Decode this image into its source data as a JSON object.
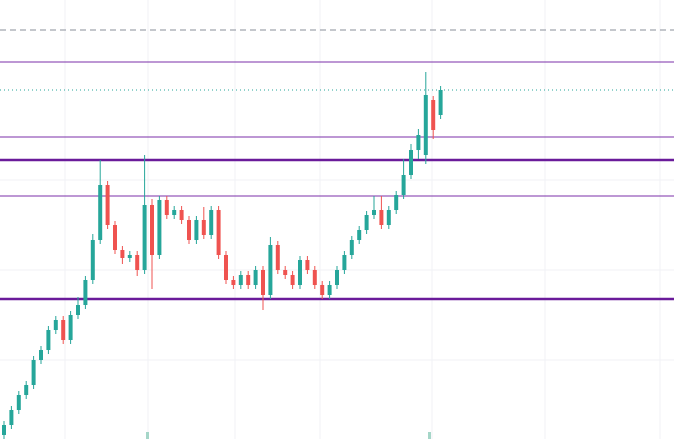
{
  "chart_data": {
    "type": "candlestick",
    "ylim": [
      0,
      439
    ],
    "up_color": "#26a69a",
    "down_color": "#ef5350",
    "open": [
      4,
      14,
      29,
      44,
      54,
      79,
      89,
      109,
      119,
      99,
      124,
      134,
      159,
      199,
      254,
      214,
      189,
      181,
      184,
      169,
      234,
      184,
      239,
      224,
      229,
      219,
      199,
      219,
      204,
      229,
      184,
      159,
      154,
      164,
      154,
      169,
      144,
      194,
      169,
      164,
      154,
      179,
      169,
      154,
      144,
      154,
      169,
      184,
      199,
      209,
      224,
      229,
      214,
      229,
      244,
      264,
      289,
      284,
      339,
      324
    ],
    "high": [
      18,
      33,
      48,
      58,
      83,
      93,
      113,
      123,
      123,
      128,
      142,
      163,
      205,
      279,
      258,
      218,
      193,
      188,
      188,
      284,
      240,
      243,
      243,
      233,
      233,
      223,
      223,
      232,
      233,
      233,
      188,
      163,
      168,
      168,
      173,
      173,
      202,
      198,
      173,
      168,
      183,
      183,
      173,
      158,
      158,
      173,
      188,
      203,
      213,
      228,
      243,
      243,
      233,
      248,
      280,
      295,
      310,
      367,
      343,
      353
    ],
    "low": [
      0,
      10,
      25,
      40,
      50,
      75,
      85,
      105,
      95,
      95,
      120,
      130,
      155,
      195,
      210,
      185,
      175,
      177,
      163,
      165,
      150,
      180,
      220,
      220,
      215,
      195,
      195,
      200,
      200,
      180,
      155,
      150,
      150,
      150,
      150,
      129,
      140,
      165,
      160,
      150,
      150,
      165,
      150,
      140,
      140,
      150,
      165,
      180,
      195,
      205,
      220,
      210,
      210,
      225,
      240,
      260,
      280,
      275,
      300,
      320
    ],
    "close": [
      14,
      29,
      44,
      54,
      79,
      89,
      109,
      119,
      99,
      124,
      134,
      159,
      199,
      254,
      214,
      189,
      181,
      184,
      169,
      234,
      184,
      239,
      224,
      229,
      219,
      199,
      219,
      204,
      229,
      184,
      159,
      154,
      164,
      154,
      169,
      144,
      194,
      169,
      164,
      154,
      179,
      169,
      154,
      144,
      154,
      169,
      184,
      199,
      209,
      224,
      229,
      214,
      229,
      244,
      264,
      289,
      304,
      344,
      309,
      349
    ],
    "levels": [
      {
        "value": 409,
        "color": "#8a8f99",
        "style": "dashed",
        "width": 1
      },
      {
        "value": 377,
        "color": "#7b2fa8",
        "style": "solid",
        "width": 1
      },
      {
        "value": 349,
        "color": "#26a69a",
        "style": "dotted",
        "width": 1
      },
      {
        "value": 302,
        "color": "#7b2fa8",
        "style": "solid",
        "width": 1
      },
      {
        "value": 279,
        "color": "#6a1b9a",
        "style": "solid",
        "width": 2.5
      },
      {
        "value": 243,
        "color": "#7b2fa8",
        "style": "solid",
        "width": 1
      },
      {
        "value": 140,
        "color": "#6a1b9a",
        "style": "solid",
        "width": 2.5
      }
    ]
  }
}
